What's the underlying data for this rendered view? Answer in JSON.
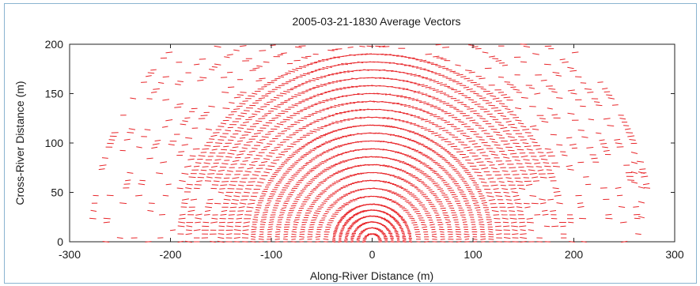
{
  "chart_data": {
    "type": "scatter",
    "title": "2005-03-21-1830 Average Vectors",
    "xlabel": "Along-River Distance (m)",
    "ylabel": "Cross-River Distance (m)",
    "xlim": [
      -300,
      300
    ],
    "ylim": [
      0,
      200
    ],
    "xticks": [
      "-300",
      "-200",
      "-100",
      "0",
      "100",
      "200",
      "300"
    ],
    "yticks": [
      "0",
      "50",
      "100",
      "150",
      "200"
    ],
    "grid": false,
    "legend": "none",
    "series": [
      {
        "marker": "short line segment (velocity vector)",
        "color": "#e8262a",
        "pattern": "concentric semicircular arcs centered near x=0, y=0",
        "ring_radii": [
          8,
          14,
          20,
          26,
          32,
          38,
          46,
          54,
          62,
          70,
          78,
          86,
          94,
          102,
          110,
          118,
          126,
          134,
          142,
          150,
          158,
          166,
          174,
          182,
          190,
          198,
          210,
          222,
          236,
          250,
          264,
          278
        ],
        "outlier_clusters": [
          {
            "x": 260,
            "y_range": [
              60,
              90
            ]
          },
          {
            "x": 267,
            "y_range": [
              25,
              70
            ]
          }
        ]
      }
    ]
  }
}
